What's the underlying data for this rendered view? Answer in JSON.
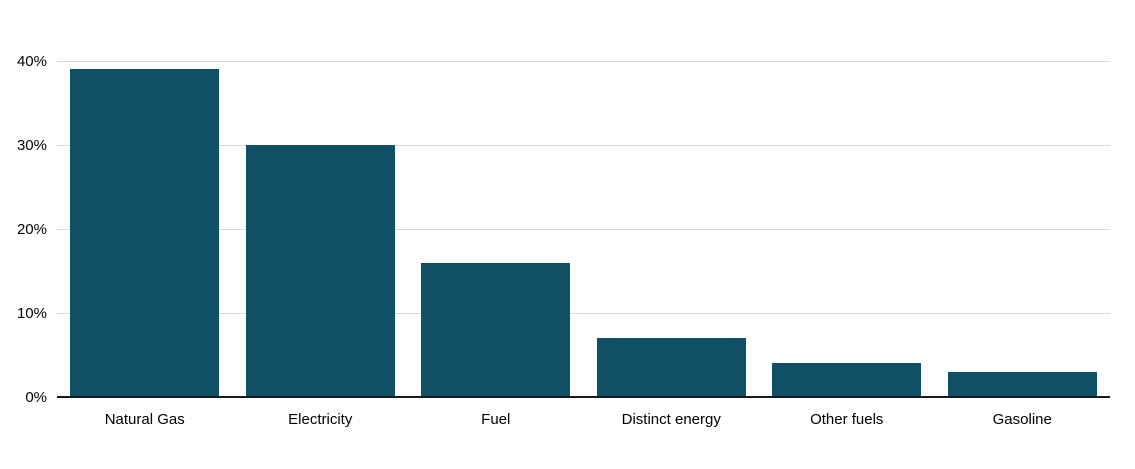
{
  "chart_data": {
    "type": "bar",
    "categories": [
      "Natural Gas",
      "Electricity",
      "Fuel",
      "Distinct energy",
      "Other fuels",
      "Gasoline"
    ],
    "values": [
      39,
      30,
      16,
      7,
      4,
      3
    ],
    "title": "",
    "xlabel": "",
    "ylabel": "",
    "ylim": [
      0,
      40
    ],
    "yticks": [
      0,
      10,
      20,
      30,
      40
    ],
    "ytick_labels": [
      "0%",
      "10%",
      "20%",
      "30%",
      "40%"
    ],
    "grid": true,
    "legend": false,
    "bar_color": "#0f5066",
    "gridline_color": "#d9d9d9",
    "axis_color": "#1a1a1a",
    "text_color": "#000000"
  }
}
